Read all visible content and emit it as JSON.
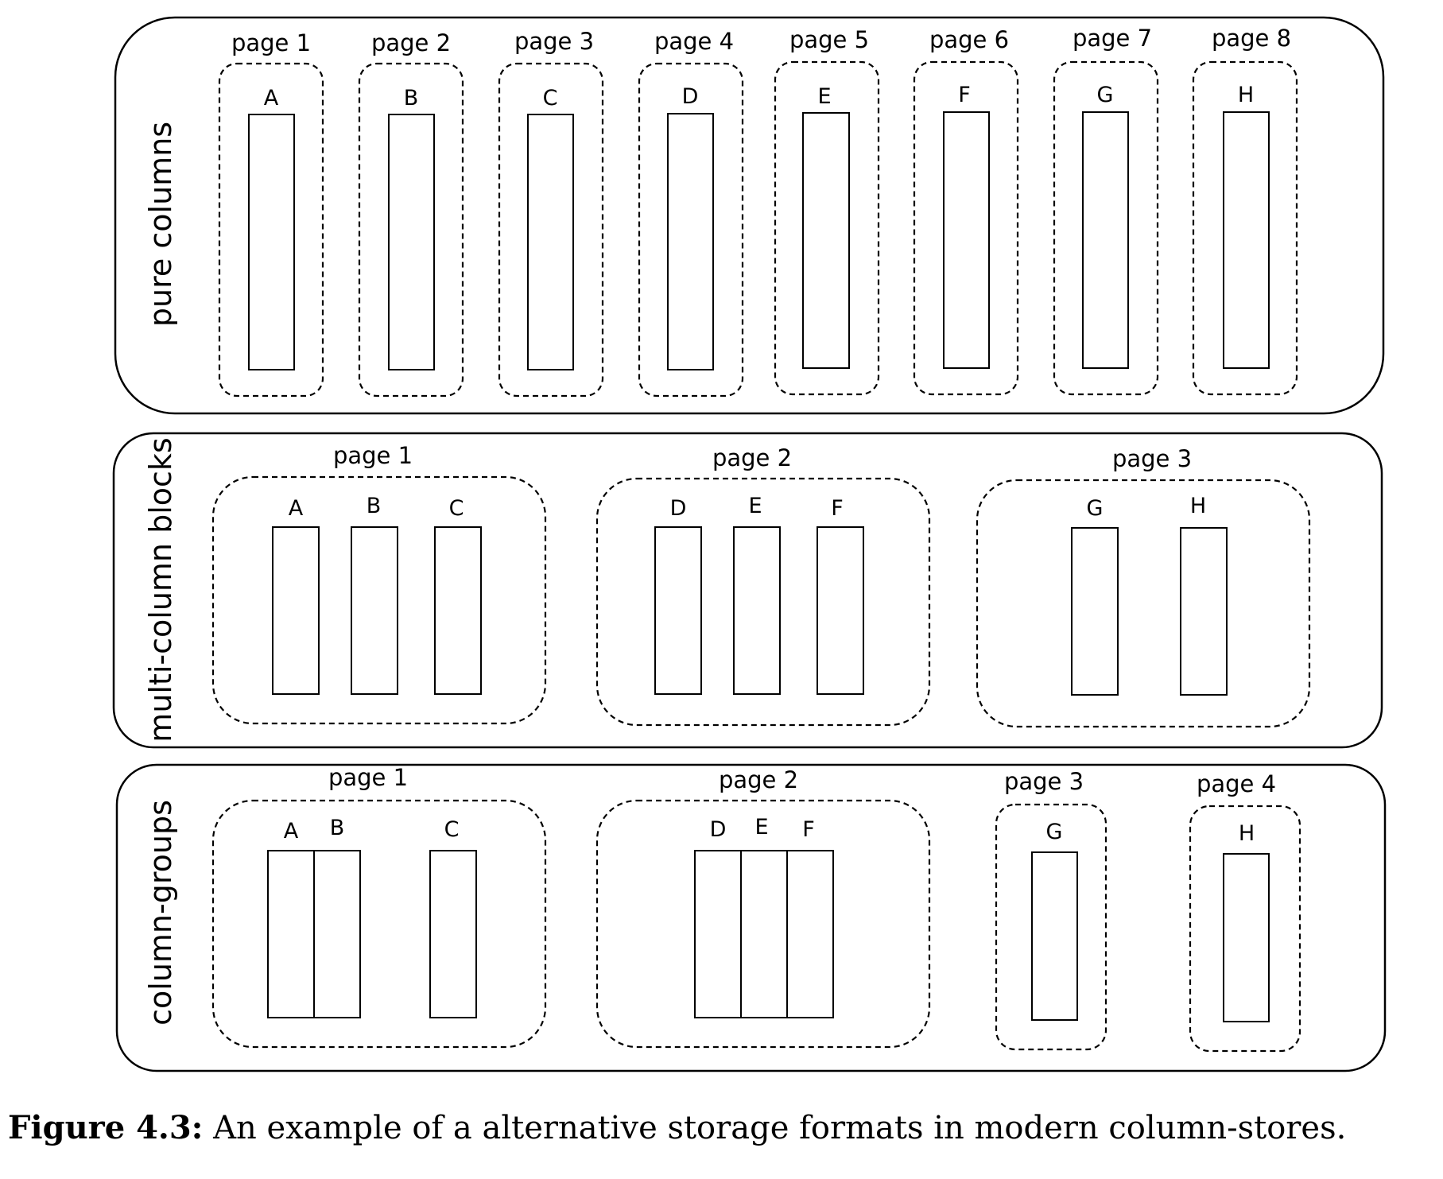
{
  "rows": [
    {
      "label": "pure columns",
      "groups": [
        {
          "label": "page 1",
          "columns": [
            "A"
          ]
        },
        {
          "label": "page 2",
          "columns": [
            "B"
          ]
        },
        {
          "label": "page 3",
          "columns": [
            "C"
          ]
        },
        {
          "label": "page 4",
          "columns": [
            "D"
          ]
        },
        {
          "label": "page 5",
          "columns": [
            "E"
          ]
        },
        {
          "label": "page 6",
          "columns": [
            "F"
          ]
        },
        {
          "label": "page 7",
          "columns": [
            "G"
          ]
        },
        {
          "label": "page 8",
          "columns": [
            "H"
          ]
        }
      ]
    },
    {
      "label": "multi-column blocks",
      "groups": [
        {
          "label": "page 1",
          "columns": [
            "A",
            "B",
            "C"
          ]
        },
        {
          "label": "page 2",
          "columns": [
            "D",
            "E",
            "F"
          ]
        },
        {
          "label": "page 3",
          "columns": [
            "G",
            "H"
          ]
        }
      ]
    },
    {
      "label": "column-groups",
      "groups": [
        {
          "label": "page 1",
          "columns": [
            "A",
            "B",
            "C"
          ]
        },
        {
          "label": "page 2",
          "columns": [
            "D",
            "E",
            "F"
          ]
        },
        {
          "label": "page 3",
          "columns": [
            "G"
          ]
        },
        {
          "label": "page 4",
          "columns": [
            "H"
          ]
        }
      ]
    }
  ],
  "caption": {
    "number": "Figure 4.3:",
    "text": " An example of a alternative storage formats in modern column-stores."
  }
}
